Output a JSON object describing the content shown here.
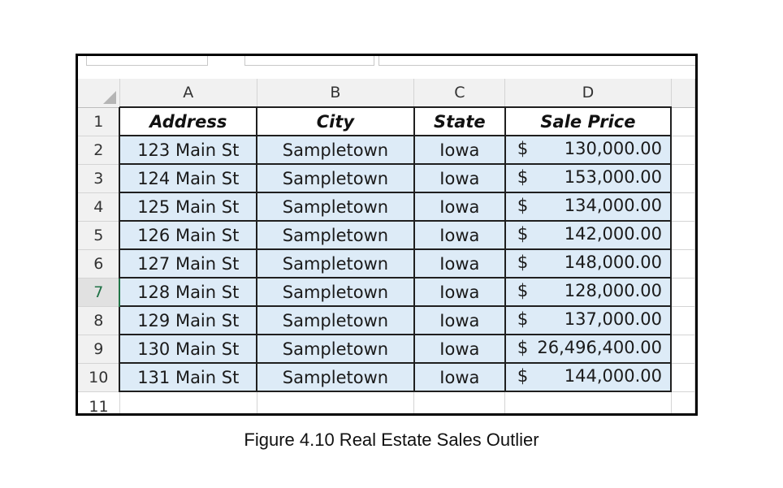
{
  "sheet": {
    "column_headers": [
      "A",
      "B",
      "C",
      "D"
    ],
    "header_row": {
      "row": "1",
      "address": "Address",
      "city": "City",
      "state": "State",
      "price": "Sale Price"
    },
    "rows": [
      {
        "row": "2",
        "address": "123 Main St",
        "city": "Sampletown",
        "state": "Iowa",
        "currency": "$",
        "price": "130,000.00"
      },
      {
        "row": "3",
        "address": "124 Main St",
        "city": "Sampletown",
        "state": "Iowa",
        "currency": "$",
        "price": "153,000.00"
      },
      {
        "row": "4",
        "address": "125 Main St",
        "city": "Sampletown",
        "state": "Iowa",
        "currency": "$",
        "price": "134,000.00"
      },
      {
        "row": "5",
        "address": "126 Main St",
        "city": "Sampletown",
        "state": "Iowa",
        "currency": "$",
        "price": "142,000.00"
      },
      {
        "row": "6",
        "address": "127 Main St",
        "city": "Sampletown",
        "state": "Iowa",
        "currency": "$",
        "price": "148,000.00"
      },
      {
        "row": "7",
        "address": "128 Main St",
        "city": "Sampletown",
        "state": "Iowa",
        "currency": "$",
        "price": "128,000.00"
      },
      {
        "row": "8",
        "address": "129 Main St",
        "city": "Sampletown",
        "state": "Iowa",
        "currency": "$",
        "price": "137,000.00"
      },
      {
        "row": "9",
        "address": "130 Main St",
        "city": "Sampletown",
        "state": "Iowa",
        "currency": "$",
        "price": "26,496,400.00"
      },
      {
        "row": "10",
        "address": "131 Main St",
        "city": "Sampletown",
        "state": "Iowa",
        "currency": "$",
        "price": "144,000.00"
      }
    ],
    "last_row_label": "11",
    "active_row": "7"
  },
  "caption": "Figure 4.10 Real Estate Sales Outlier",
  "colors": {
    "cell_fill": "#ddebf7",
    "active_row_header": "#217346"
  }
}
